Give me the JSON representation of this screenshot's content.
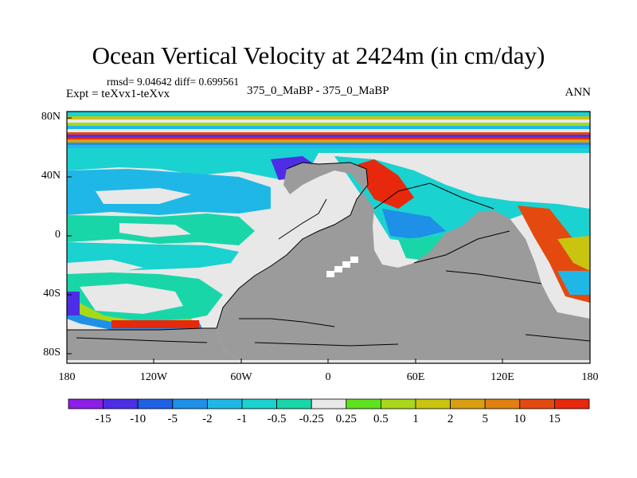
{
  "title": "Ocean Vertical Velocity at 2424m (in cm/day)",
  "stats": "rmsd= 9.04642 diff= 0.699561",
  "experiment": "Expt = teXvx1-teXvx",
  "comparison": "375_0_MaBP - 375_0_MaBP",
  "season": "ANN",
  "latitude_labels": [
    "80N",
    "40N",
    "0",
    "40S",
    "80S"
  ],
  "longitude_labels": [
    "180",
    "120W",
    "60W",
    "0",
    "60E",
    "120E",
    "180"
  ],
  "colorbar": {
    "labels": [
      "-15",
      "-10",
      "-5",
      "-2",
      "-1",
      "-0.5",
      "-0.25",
      "0.25",
      "0.5",
      "1",
      "2",
      "5",
      "10",
      "15"
    ],
    "colors": [
      "#8c1ee6",
      "#4d2ee6",
      "#2060e6",
      "#1e90e8",
      "#1fb8e6",
      "#1ad2d0",
      "#19d6a8",
      "#e8e8e8",
      "#5fe21e",
      "#a8d818",
      "#c8c410",
      "#d8a010",
      "#e08010",
      "#e44a10",
      "#e8280c"
    ]
  },
  "land_color": "#9b9b9b",
  "ocean_background": "#e8e8e8"
}
